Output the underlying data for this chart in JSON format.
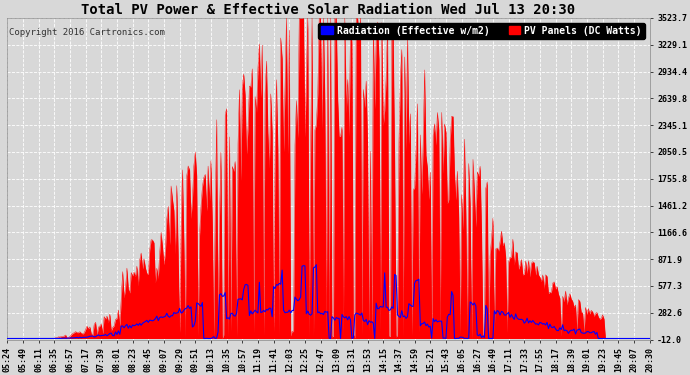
{
  "title": "Total PV Power & Effective Solar Radiation Wed Jul 13 20:30",
  "copyright": "Copyright 2016 Cartronics.com",
  "legend_radiation": "Radiation (Effective w/m2)",
  "legend_pv": "PV Panels (DC Watts)",
  "yticks": [
    -12.0,
    282.6,
    577.3,
    871.9,
    1166.6,
    1461.2,
    1755.8,
    2050.5,
    2345.1,
    2639.8,
    2934.4,
    3229.1,
    3523.7
  ],
  "ymin": -12.0,
  "ymax": 3523.7,
  "background_color": "#d8d8d8",
  "plot_bg_color": "#d8d8d8",
  "grid_color": "#ffffff",
  "radiation_color": "#0000ff",
  "pv_color": "#ff0000",
  "title_color": "#000000",
  "title_fontsize": 10,
  "copyright_fontsize": 6.5,
  "tick_fontsize": 6,
  "legend_fontsize": 7,
  "xtick_labels": [
    "05:24",
    "05:49",
    "06:11",
    "06:35",
    "06:57",
    "07:17",
    "07:39",
    "08:01",
    "08:23",
    "08:45",
    "09:07",
    "09:29",
    "09:51",
    "10:13",
    "10:35",
    "10:57",
    "11:19",
    "11:41",
    "12:03",
    "12:25",
    "12:47",
    "13:09",
    "13:31",
    "13:53",
    "14:15",
    "14:37",
    "14:59",
    "15:21",
    "15:43",
    "16:05",
    "16:27",
    "16:49",
    "17:11",
    "17:33",
    "17:55",
    "18:17",
    "18:39",
    "19:01",
    "19:23",
    "19:45",
    "20:07",
    "20:30"
  ]
}
